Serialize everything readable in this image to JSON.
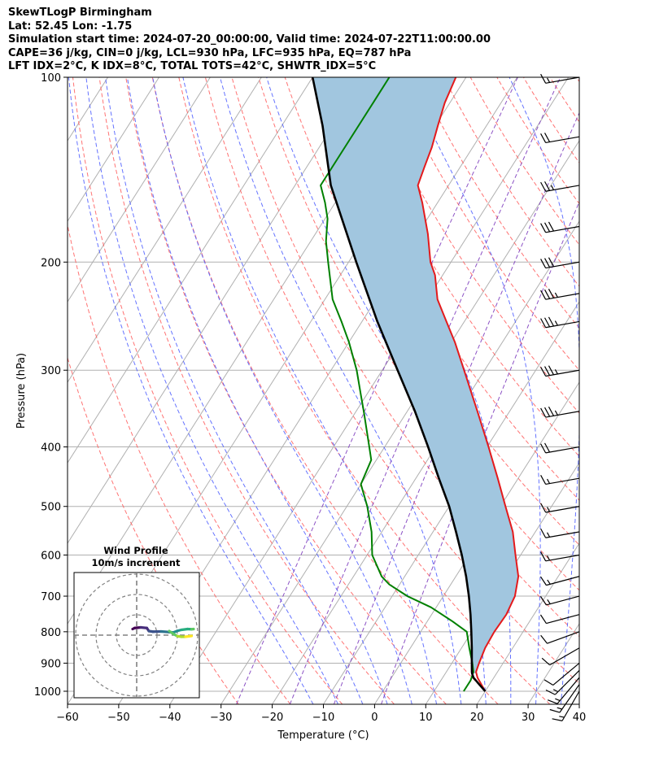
{
  "header": {
    "line1": "SkewTLogP Birmingham",
    "line2": "Lat: 52.45   Lon: -1.75",
    "line3": "Simulation start time: 2024-07-20_00:00:00, Valid time: 2024-07-22T11:00:00.00",
    "line4": "CAPE=36 j/kg, CIN=0 j/kg, LCL=930 hPa, LFC=935 hPa, EQ=787 hPa",
    "line5": "LFT IDX=2°C, K IDX=8°C, TOTAL TOTS=42°C, SHWTR_IDX=5°C"
  },
  "chart_data": {
    "type": "line",
    "subtype": "skew-T log-P diagram",
    "xlabel": "Temperature (°C)",
    "ylabel": "Pressure (hPa)",
    "xlim": [
      -60,
      40
    ],
    "ylim": [
      1050,
      100
    ],
    "y_scale": "log",
    "x_ticks": [
      -60,
      -50,
      -40,
      -30,
      -20,
      -10,
      0,
      10,
      20,
      30,
      40
    ],
    "x_tick_labels": [
      "−60",
      "−50",
      "−40",
      "−30",
      "−20",
      "−10",
      "0",
      "10",
      "20",
      "30",
      "40"
    ],
    "y_ticks": [
      1000,
      900,
      800,
      700,
      600,
      500,
      400,
      300,
      200,
      100
    ],
    "grid": true,
    "colors": {
      "temperature": "#e41a1c",
      "dewpoint": "#008000",
      "parcel": "#000000",
      "cape_fill": "#a1c6df",
      "dry_adiabat": "#ff5a5a",
      "moist_adiabat": "#4a5aff",
      "mixing_ratio": "#7f3fbf"
    },
    "series": [
      {
        "key": "temperature",
        "points": [
          [
            1000,
            20.0
          ],
          [
            950,
            16.8
          ],
          [
            930,
            15.8
          ],
          [
            900,
            15.3
          ],
          [
            850,
            14.6
          ],
          [
            800,
            14.4
          ],
          [
            750,
            14.6
          ],
          [
            700,
            14.0
          ],
          [
            650,
            12.2
          ],
          [
            600,
            9.0
          ],
          [
            550,
            5.6
          ],
          [
            500,
            1.0
          ],
          [
            450,
            -4.0
          ],
          [
            400,
            -9.7
          ],
          [
            350,
            -16.3
          ],
          [
            300,
            -24.0
          ],
          [
            270,
            -29.3
          ],
          [
            250,
            -33.5
          ],
          [
            230,
            -38.0
          ],
          [
            210,
            -41.5
          ],
          [
            200,
            -44.0
          ],
          [
            180,
            -48.0
          ],
          [
            160,
            -53.0
          ],
          [
            150,
            -56.0
          ],
          [
            140,
            -57.0
          ],
          [
            130,
            -58.0
          ],
          [
            120,
            -59.5
          ],
          [
            110,
            -61.0
          ],
          [
            100,
            -62.0
          ]
        ]
      },
      {
        "key": "dewpoint",
        "points": [
          [
            1000,
            15.8
          ],
          [
            960,
            15.8
          ],
          [
            930,
            15.3
          ],
          [
            900,
            14.0
          ],
          [
            850,
            11.5
          ],
          [
            800,
            9.0
          ],
          [
            770,
            5.0
          ],
          [
            730,
            -1.0
          ],
          [
            700,
            -7.0
          ],
          [
            670,
            -12.0
          ],
          [
            650,
            -14.5
          ],
          [
            600,
            -19.0
          ],
          [
            550,
            -22.0
          ],
          [
            500,
            -26.0
          ],
          [
            460,
            -30.0
          ],
          [
            420,
            -31.0
          ],
          [
            400,
            -33.0
          ],
          [
            350,
            -38.5
          ],
          [
            330,
            -41.0
          ],
          [
            300,
            -45.0
          ],
          [
            270,
            -50.0
          ],
          [
            250,
            -54.0
          ],
          [
            230,
            -58.5
          ],
          [
            200,
            -64.0
          ],
          [
            185,
            -67.0
          ],
          [
            170,
            -69.5
          ],
          [
            160,
            -72.0
          ],
          [
            150,
            -75.0
          ],
          [
            130,
            -75.0
          ],
          [
            110,
            -75.0
          ],
          [
            100,
            -75.0
          ]
        ]
      },
      {
        "key": "parcel",
        "points": [
          [
            1000,
            20.0
          ],
          [
            975,
            18.0
          ],
          [
            950,
            16.0
          ],
          [
            935,
            15.2
          ],
          [
            930,
            15.0
          ],
          [
            900,
            13.9
          ],
          [
            850,
            12.0
          ],
          [
            800,
            9.9
          ],
          [
            750,
            7.6
          ],
          [
            700,
            5.0
          ],
          [
            650,
            2.0
          ],
          [
            600,
            -1.5
          ],
          [
            550,
            -5.5
          ],
          [
            500,
            -10.0
          ],
          [
            450,
            -15.5
          ],
          [
            400,
            -21.5
          ],
          [
            350,
            -28.5
          ],
          [
            300,
            -37.0
          ],
          [
            250,
            -47.0
          ],
          [
            200,
            -58.5
          ],
          [
            150,
            -73.0
          ],
          [
            120,
            -82.0
          ],
          [
            100,
            -90.0
          ]
        ]
      }
    ],
    "wind_barbs": {
      "pressures": [
        1000,
        975,
        950,
        925,
        900,
        850,
        800,
        750,
        700,
        650,
        600,
        550,
        500,
        450,
        400,
        350,
        300,
        250,
        225,
        200,
        175,
        150,
        125,
        100
      ],
      "speeds_kt": [
        15,
        15,
        15,
        15,
        10,
        10,
        10,
        10,
        15,
        15,
        15,
        15,
        15,
        15,
        20,
        35,
        35,
        35,
        35,
        30,
        30,
        25,
        20,
        15
      ],
      "directions_deg": [
        210,
        215,
        220,
        225,
        230,
        240,
        250,
        255,
        255,
        255,
        260,
        260,
        260,
        260,
        260,
        260,
        260,
        260,
        260,
        260,
        260,
        260,
        260,
        260
      ]
    },
    "inset": {
      "title_line1": "Wind Profile",
      "title_line2": "10m/s increment",
      "rings_ms": [
        10,
        20,
        30
      ],
      "hodograph": [
        [
          -2,
          3
        ],
        [
          -1,
          3.5
        ],
        [
          2,
          3.8
        ],
        [
          5,
          3.5
        ],
        [
          6,
          2
        ],
        [
          8,
          1.7
        ],
        [
          12,
          1.8
        ],
        [
          16,
          1.5
        ],
        [
          18,
          1.3
        ],
        [
          20,
          2.1
        ],
        [
          22,
          2.6
        ],
        [
          25,
          3.0
        ],
        [
          27,
          2.9
        ],
        [
          28,
          3.0
        ]
      ],
      "hodograph_branch": [
        [
          16,
          2.0
        ],
        [
          18,
          0.6
        ],
        [
          20,
          -0.5
        ],
        [
          22,
          -0.8
        ],
        [
          24,
          -0.8
        ],
        [
          27,
          -0.4
        ]
      ]
    }
  }
}
